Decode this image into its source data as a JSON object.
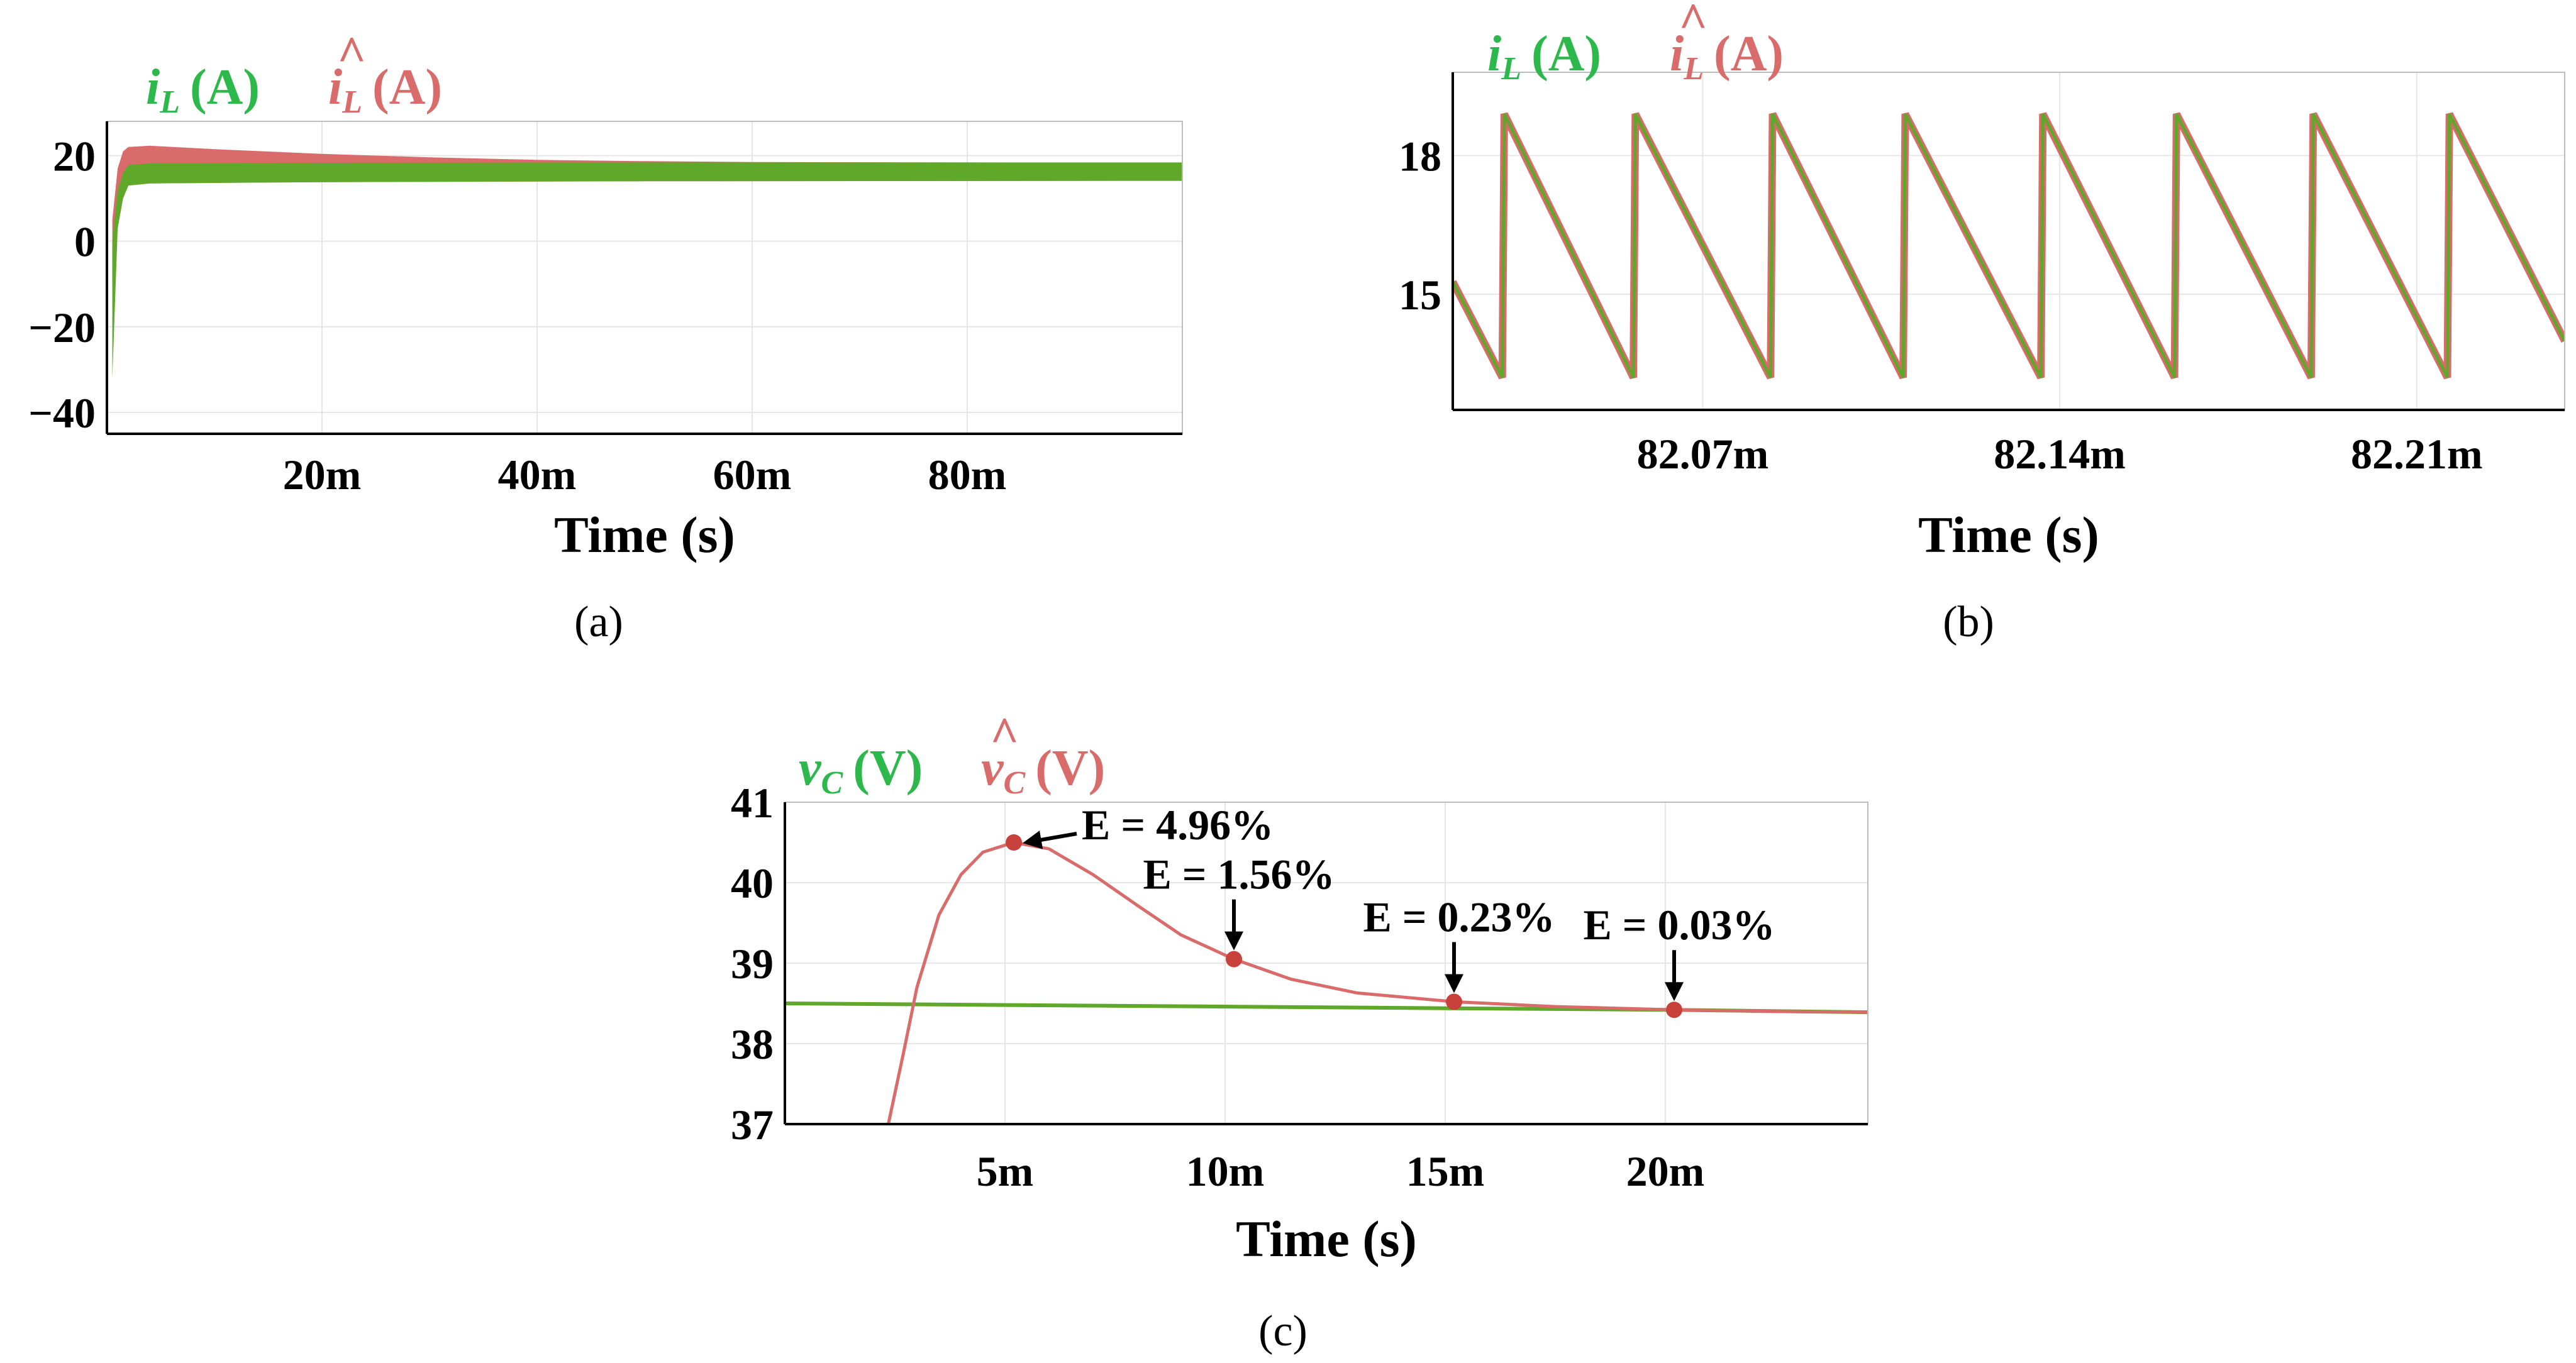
{
  "colors": {
    "measured": "#5fa82a",
    "estimated": "#d96b6b",
    "legend_green": "#2db84b",
    "grid": "#e6e6e6"
  },
  "chart_data": [
    {
      "id": "a",
      "type": "line",
      "caption": "(a)",
      "xlabel": "Time (s)",
      "legend": {
        "measured": {
          "sym": "i",
          "sub": "L",
          "unit": "(A)"
        },
        "estimated": {
          "sym": "i",
          "sub": "L",
          "unit": "(A)",
          "hat": "^"
        }
      },
      "xlim": [
        0,
        0.1
      ],
      "ylim": [
        -45,
        28
      ],
      "xticks": [
        {
          "v": 0.02,
          "label": "20m"
        },
        {
          "v": 0.04,
          "label": "40m"
        },
        {
          "v": 0.06,
          "label": "60m"
        },
        {
          "v": 0.08,
          "label": "80m"
        }
      ],
      "yticks": [
        {
          "v": 20,
          "label": "20"
        },
        {
          "v": 0,
          "label": "0"
        },
        {
          "v": -20,
          "label": "−20"
        },
        {
          "v": -40,
          "label": "−40"
        }
      ],
      "series": [
        {
          "name": "estimated_band",
          "upper": [
            [
              0.0005,
              5
            ],
            [
              0.001,
              17
            ],
            [
              0.0015,
              21
            ],
            [
              0.002,
              22
            ],
            [
              0.004,
              22.3
            ],
            [
              0.01,
              21.5
            ],
            [
              0.02,
              20.4
            ],
            [
              0.03,
              19.6
            ],
            [
              0.04,
              19
            ],
            [
              0.05,
              18.7
            ],
            [
              0.06,
              18.5
            ],
            [
              0.08,
              18.4
            ],
            [
              0.1,
              18.3
            ]
          ],
          "lower": [
            [
              0.0005,
              -10
            ],
            [
              0.001,
              6
            ],
            [
              0.0015,
              11
            ],
            [
              0.002,
              13
            ],
            [
              0.004,
              13.5
            ],
            [
              0.02,
              13.8
            ],
            [
              0.05,
              14
            ],
            [
              0.1,
              14.1
            ]
          ]
        },
        {
          "name": "measured_band",
          "upper": [
            [
              0.0005,
              0
            ],
            [
              0.001,
              12
            ],
            [
              0.0015,
              16
            ],
            [
              0.002,
              17.8
            ],
            [
              0.004,
              18.2
            ],
            [
              0.02,
              18.3
            ],
            [
              0.05,
              18.4
            ],
            [
              0.1,
              18.4
            ]
          ],
          "lower": [
            [
              0.0005,
              -32
            ],
            [
              0.001,
              3
            ],
            [
              0.0015,
              10
            ],
            [
              0.002,
              13
            ],
            [
              0.004,
              13.5
            ],
            [
              0.02,
              13.8
            ],
            [
              0.05,
              14
            ],
            [
              0.1,
              14.1
            ]
          ]
        }
      ]
    },
    {
      "id": "b",
      "type": "line",
      "caption": "(b)",
      "xlabel": "Time (s)",
      "legend": {
        "measured": {
          "sym": "i",
          "sub": "L",
          "unit": "(A)"
        },
        "estimated": {
          "sym": "i",
          "sub": "L",
          "unit": "(A)",
          "hat": "^"
        }
      },
      "xlim": [
        82.021,
        82.239
      ],
      "ylim": [
        12.5,
        19.8
      ],
      "xticks": [
        {
          "v": 82.07,
          "label": "82.07m"
        },
        {
          "v": 82.14,
          "label": "82.14m"
        },
        {
          "v": 82.21,
          "label": "82.21m"
        }
      ],
      "yticks": [
        {
          "v": 18,
          "label": "18"
        },
        {
          "v": 15,
          "label": "15"
        }
      ],
      "waveform": {
        "peak_times": [
          82.0307,
          82.0564,
          82.0833,
          82.1093,
          82.1363,
          82.1625,
          82.1893,
          82.216
        ],
        "period": 0.0267,
        "max": 18.9,
        "min": 13.2
      }
    },
    {
      "id": "c",
      "type": "line",
      "caption": "(c)",
      "xlabel": "Time (s)",
      "legend": {
        "measured": {
          "sym": "v",
          "sub": "C",
          "unit": "(V)"
        },
        "estimated": {
          "sym": "v",
          "sub": "C",
          "unit": "(V)",
          "hat": "^"
        }
      },
      "xlim": [
        0,
        0.0246
      ],
      "ylim": [
        37,
        41
      ],
      "xticks": [
        {
          "v": 0.005,
          "label": "5m"
        },
        {
          "v": 0.01,
          "label": "10m"
        },
        {
          "v": 0.015,
          "label": "15m"
        },
        {
          "v": 0.02,
          "label": "20m"
        }
      ],
      "yticks": [
        {
          "v": 41,
          "label": "41"
        },
        {
          "v": 40,
          "label": "40"
        },
        {
          "v": 39,
          "label": "39"
        },
        {
          "v": 38,
          "label": "38"
        },
        {
          "v": 37,
          "label": "37"
        }
      ],
      "series": [
        {
          "name": "measured",
          "points": [
            [
              0,
              38.5
            ],
            [
              0.005,
              38.48
            ],
            [
              0.01,
              38.46
            ],
            [
              0.015,
              38.44
            ],
            [
              0.02,
              38.42
            ],
            [
              0.0246,
              38.39
            ]
          ]
        },
        {
          "name": "estimated",
          "points": [
            [
              0.00235,
              37
            ],
            [
              0.0027,
              37.9
            ],
            [
              0.003,
              38.7
            ],
            [
              0.0035,
              39.6
            ],
            [
              0.004,
              40.1
            ],
            [
              0.0045,
              40.38
            ],
            [
              0.0052,
              40.5
            ],
            [
              0.006,
              40.42
            ],
            [
              0.007,
              40.1
            ],
            [
              0.008,
              39.72
            ],
            [
              0.009,
              39.35
            ],
            [
              0.0102,
              39.05
            ],
            [
              0.0115,
              38.8
            ],
            [
              0.013,
              38.63
            ],
            [
              0.0152,
              38.52
            ],
            [
              0.0175,
              38.46
            ],
            [
              0.0202,
              38.42
            ],
            [
              0.0225,
              38.4
            ],
            [
              0.0246,
              38.39
            ]
          ]
        }
      ],
      "markers": [
        {
          "x": 0.0052,
          "y": 40.5,
          "text": "E = 4.96%",
          "style": "left"
        },
        {
          "x": 0.0102,
          "y": 39.05,
          "text": "E = 1.56%",
          "style": "down"
        },
        {
          "x": 0.0152,
          "y": 38.52,
          "text": "E = 0.23%",
          "style": "down"
        },
        {
          "x": 0.0202,
          "y": 38.42,
          "text": "E = 0.03%",
          "style": "down"
        }
      ]
    }
  ]
}
